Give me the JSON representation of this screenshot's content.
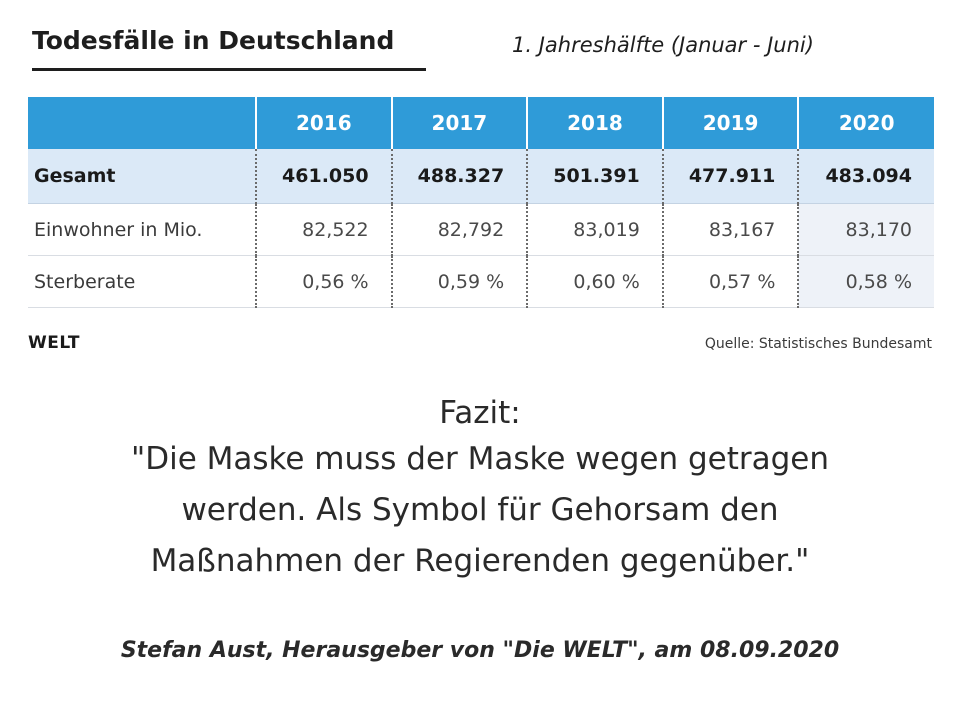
{
  "header": {
    "title": "Todesfälle in Deutschland",
    "subtitle": "1. Jahreshälfte (Januar - Juni)"
  },
  "chart_data": {
    "type": "table",
    "columns": [
      "2016",
      "2017",
      "2018",
      "2019",
      "2020"
    ],
    "rows": [
      {
        "label": "Gesamt",
        "values": [
          "461.050",
          "488.327",
          "501.391",
          "477.911",
          "483.094"
        ]
      },
      {
        "label": "Einwohner in Mio.",
        "values": [
          "82,522",
          "82,792",
          "83,019",
          "83,167",
          "83,170"
        ]
      },
      {
        "label": "Sterberate",
        "values": [
          "0,56 %",
          "0,59 %",
          "0,60 %",
          "0,57 %",
          "0,58 %"
        ]
      }
    ],
    "header_color": "#2f9bd8",
    "highlight_row_color": "#dbe9f7"
  },
  "footer": {
    "brand": "WELT",
    "source": "Quelle: Statistisches Bundesamt"
  },
  "quote": {
    "heading": "Fazit:",
    "lines": [
      "\"Die Maske muss der Maske wegen getragen",
      "werden. Als Symbol für Gehorsam den",
      "Maßnahmen der Regierenden gegenüber.\""
    ],
    "attribution": "Stefan Aust, Herausgeber von \"Die WELT\", am 08.09.2020"
  }
}
